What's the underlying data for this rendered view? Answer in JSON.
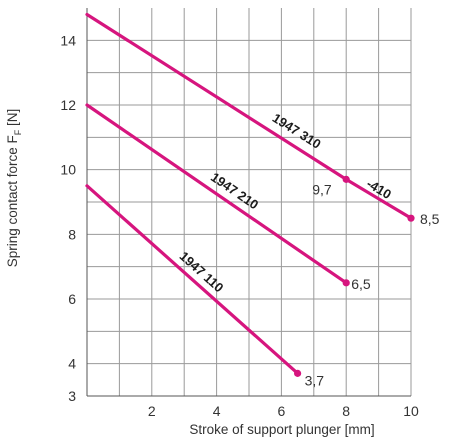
{
  "chart_data": {
    "type": "line",
    "xlabel": "Stroke of support plunger [mm]",
    "ylabel": "Spring contact force F",
    "ylabel_subscript": "F",
    "ylabel_unit": " [N]",
    "xlim": [
      0,
      10
    ],
    "ylim": [
      3,
      15
    ],
    "x_ticks": [
      2,
      4,
      6,
      8,
      10
    ],
    "y_ticks": [
      3,
      4,
      6,
      8,
      10,
      12,
      14
    ],
    "grid": true,
    "line_color": "#d6157e",
    "series": [
      {
        "name": "1947 310",
        "x": [
          0,
          8,
          10
        ],
        "y": [
          14.8,
          9.7,
          8.5
        ],
        "point_labels": [
          {
            "x": 8,
            "y": 9.7,
            "text": "9,7"
          },
          {
            "x": 10,
            "y": 8.5,
            "text": "8,5"
          }
        ],
        "extra_label": "-410"
      },
      {
        "name": "1947 210",
        "x": [
          0,
          8
        ],
        "y": [
          12.0,
          6.5
        ],
        "point_labels": [
          {
            "x": 8,
            "y": 6.5,
            "text": "6,5"
          }
        ]
      },
      {
        "name": "1947 110",
        "x": [
          0,
          6.5
        ],
        "y": [
          9.5,
          3.7
        ],
        "point_labels": [
          {
            "x": 6.5,
            "y": 3.7,
            "text": "3,7"
          }
        ]
      }
    ]
  }
}
